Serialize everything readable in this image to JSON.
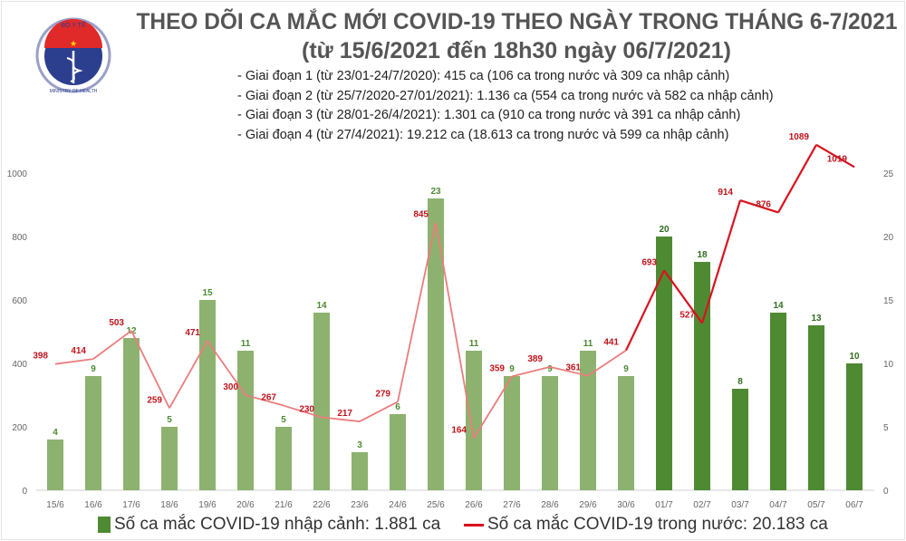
{
  "title": "THEO DÕI CA MẮC MỚI COVID-19 THEO NGÀY TRONG THÁNG 6-7/2021",
  "subtitle": "(từ 15/6/2021 đến 18h30 ngày 06/7/2021)",
  "notes": [
    "- Giai đoạn 1 (từ 23/01-24/7/2020): 415 ca (106 ca trong nước và 309 ca nhập cảnh)",
    "- Giai đoạn 2 (từ 25/7/2020-27/01/2021): 1.136 ca (554 ca trong nước và 582 ca nhập cảnh)",
    "- Giai đoạn 3 (từ 28/01-26/4/2021): 1.301 ca (910 ca trong nước và 391 ca nhập cảnh)",
    "- Giai đoạn 4 (từ 27/4/2021): 19.212 ca (18.613 ca trong nước và 599 ca nhập cảnh)"
  ],
  "logo": {
    "top_text": "BỘ Y TẾ",
    "bottom_text": "MINISTRY OF HEALTH"
  },
  "colors": {
    "bar_light": "#8db26f",
    "bar_dark": "#4e8a32",
    "line_light": "#ea7d7d",
    "line_dark": "#d9121f"
  },
  "chart_data": {
    "type": "bar+line",
    "categories": [
      "15/6",
      "16/6",
      "17/6",
      "18/6",
      "19/6",
      "20/6",
      "21/6",
      "22/6",
      "23/6",
      "24/6",
      "25/6",
      "26/6",
      "27/6",
      "28/6",
      "29/6",
      "30/6",
      "01/7",
      "02/7",
      "03/7",
      "04/7",
      "05/7",
      "06/7"
    ],
    "series": [
      {
        "name": "Số ca mắc COVID-19 nhập cảnh: 1.881 ca",
        "type": "bar",
        "axis": "right",
        "values": [
          4,
          9,
          12,
          5,
          15,
          11,
          5,
          14,
          3,
          6,
          23,
          11,
          9,
          9,
          11,
          9,
          20,
          18,
          8,
          14,
          13,
          10
        ]
      },
      {
        "name": "Số ca mắc COVID-19 trong nước: 20.183 ca",
        "type": "line",
        "axis": "left",
        "values": [
          398,
          414,
          503,
          259,
          471,
          300,
          267,
          230,
          217,
          279,
          845,
          164,
          359,
          389,
          361,
          441,
          693,
          527,
          914,
          876,
          1089,
          1019
        ]
      }
    ],
    "left_axis": {
      "ylim": [
        0,
        1000
      ],
      "ticks": [
        0,
        200,
        400,
        600,
        800,
        1000
      ]
    },
    "right_axis": {
      "ylim": [
        0,
        25
      ],
      "ticks": [
        0,
        5,
        10,
        15,
        20,
        25
      ]
    },
    "grid": false,
    "legend": "bottom"
  }
}
